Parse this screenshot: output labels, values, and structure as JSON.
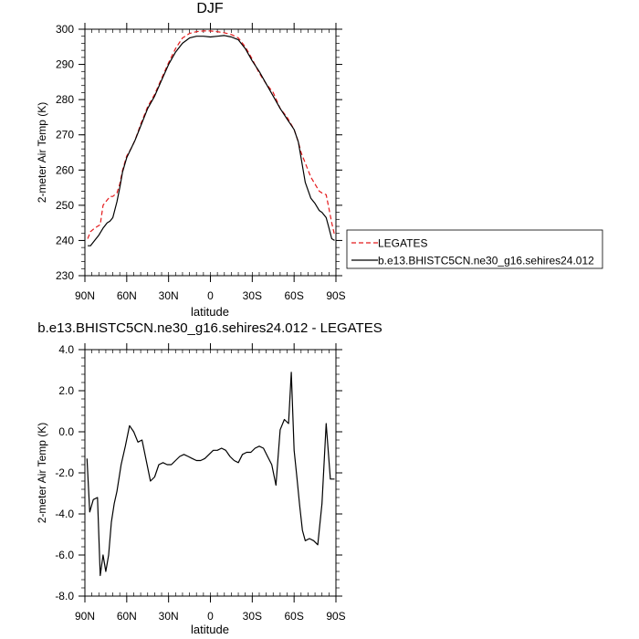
{
  "chart_data": [
    {
      "type": "line",
      "title": "DJF",
      "xlabel": "latitude",
      "ylabel": "2-meter Air Temp (K)",
      "xlim": [
        -90,
        90
      ],
      "ylim": [
        230,
        300
      ],
      "x_ticks": [
        -90,
        -60,
        -30,
        0,
        30,
        60,
        90
      ],
      "x_tick_labels": [
        "90N",
        "60N",
        "30N",
        "0",
        "30S",
        "60S",
        "90S"
      ],
      "y_ticks": [
        230,
        240,
        250,
        260,
        270,
        280,
        290,
        300
      ],
      "y_tick_labels": [
        "230",
        "240",
        "250",
        "260",
        "270",
        "280",
        "290",
        "300"
      ],
      "legend_position": "right",
      "series": [
        {
          "name": "LEGATES",
          "color": "#e41a1c",
          "dash": "dashed",
          "x": [
            -88,
            -86,
            -83,
            -79,
            -77,
            -75,
            -72,
            -70,
            -67,
            -65,
            -63,
            -60,
            -57,
            -54,
            -50,
            -45,
            -40,
            -35,
            -30,
            -25,
            -20,
            -15,
            -10,
            -5,
            0,
            5,
            10,
            15,
            20,
            25,
            30,
            35,
            40,
            45,
            50,
            55,
            60,
            63,
            65,
            68,
            72,
            75,
            78,
            80,
            83,
            85,
            87,
            89
          ],
          "y": [
            240.5,
            242.5,
            243.5,
            244.5,
            250,
            251,
            252.5,
            252.5,
            253.5,
            256,
            260,
            264,
            266,
            268.5,
            273,
            278,
            281.5,
            286,
            290.5,
            294.5,
            297.5,
            298.8,
            299.3,
            299.5,
            299.5,
            299.3,
            299.0,
            298.5,
            297.5,
            295.0,
            291.5,
            287.5,
            284.5,
            282.0,
            277.5,
            275.0,
            271.5,
            268.0,
            265.0,
            262.0,
            258.0,
            256.0,
            254.0,
            253.5,
            253.0,
            249.0,
            245.0,
            241.5
          ]
        },
        {
          "name": "b.e13.BHISTC5CN.ne30_g16.sehires24.012",
          "color": "#000000",
          "dash": "solid",
          "x": [
            -88,
            -86,
            -83,
            -80,
            -77,
            -74,
            -72,
            -70,
            -67,
            -65,
            -63,
            -60,
            -57,
            -54,
            -50,
            -45,
            -40,
            -35,
            -30,
            -25,
            -20,
            -15,
            -10,
            -5,
            0,
            5,
            10,
            15,
            20,
            25,
            30,
            35,
            40,
            45,
            50,
            55,
            60,
            63,
            65,
            68,
            72,
            75,
            78,
            80,
            83,
            85,
            87,
            89
          ],
          "y": [
            238.5,
            238.5,
            240.0,
            241.5,
            243.5,
            245.0,
            245.5,
            246.5,
            251.0,
            255.0,
            259.5,
            263.5,
            266.0,
            268.5,
            272.5,
            277.5,
            281.0,
            285.5,
            290.0,
            293.5,
            296.0,
            297.5,
            298.0,
            298.0,
            297.8,
            298.0,
            298.2,
            297.8,
            297.0,
            294.5,
            291.0,
            288.0,
            284.5,
            281.0,
            277.5,
            274.5,
            271.5,
            268.0,
            263.5,
            256.5,
            252.0,
            250.5,
            248.5,
            248.0,
            246.5,
            243.5,
            240.5,
            240.0
          ]
        }
      ]
    },
    {
      "type": "line",
      "title": "b.e13.BHISTC5CN.ne30_g16.sehires24.012 - LEGATES",
      "xlabel": "latitude",
      "ylabel": "2-meter Air Temp (K)",
      "xlim": [
        -90,
        90
      ],
      "ylim": [
        -8.0,
        4.0
      ],
      "x_ticks": [
        -90,
        -60,
        -30,
        0,
        30,
        60,
        90
      ],
      "x_tick_labels": [
        "90N",
        "60N",
        "30N",
        "0",
        "30S",
        "60S",
        "90S"
      ],
      "y_ticks": [
        -8,
        -6,
        -4,
        -2,
        0,
        2,
        4
      ],
      "y_tick_labels": [
        "-8.0",
        "-6.0",
        "-4.0",
        "-2.0",
        "0.0",
        "2.0",
        "4.0"
      ],
      "series": [
        {
          "color": "#000000",
          "dash": "solid",
          "x": [
            -88.5,
            -86.5,
            -84,
            -81,
            -79,
            -77,
            -75,
            -73,
            -71,
            -69,
            -67,
            -64,
            -61,
            -58,
            -55,
            -52,
            -49,
            -46,
            -43,
            -40,
            -37,
            -34,
            -31,
            -28,
            -25,
            -22,
            -19,
            -16,
            -13,
            -10,
            -7,
            -4,
            -1,
            2,
            5,
            8,
            11,
            14,
            17,
            20,
            23,
            26,
            29,
            32,
            35,
            38,
            41,
            44,
            47,
            50,
            53,
            56,
            58,
            60,
            62,
            64,
            66,
            68,
            71,
            74,
            77,
            80,
            83,
            86,
            89
          ],
          "y": [
            -1.3,
            -3.9,
            -3.3,
            -3.2,
            -7.0,
            -6.0,
            -6.8,
            -6.0,
            -4.4,
            -3.5,
            -2.9,
            -1.6,
            -0.7,
            0.3,
            0.0,
            -0.5,
            -0.4,
            -1.4,
            -2.4,
            -2.2,
            -1.6,
            -1.5,
            -1.6,
            -1.6,
            -1.4,
            -1.2,
            -1.1,
            -1.2,
            -1.3,
            -1.4,
            -1.4,
            -1.3,
            -1.1,
            -0.9,
            -0.9,
            -0.8,
            -0.9,
            -1.2,
            -1.4,
            -1.5,
            -1.1,
            -1.0,
            -1.0,
            -0.8,
            -0.7,
            -0.8,
            -1.2,
            -1.6,
            -2.6,
            0.1,
            0.6,
            0.4,
            2.9,
            -0.9,
            -2.2,
            -3.6,
            -4.8,
            -5.3,
            -5.2,
            -5.3,
            -5.5,
            -3.5,
            0.4,
            -2.3,
            -2.3
          ]
        }
      ]
    }
  ]
}
